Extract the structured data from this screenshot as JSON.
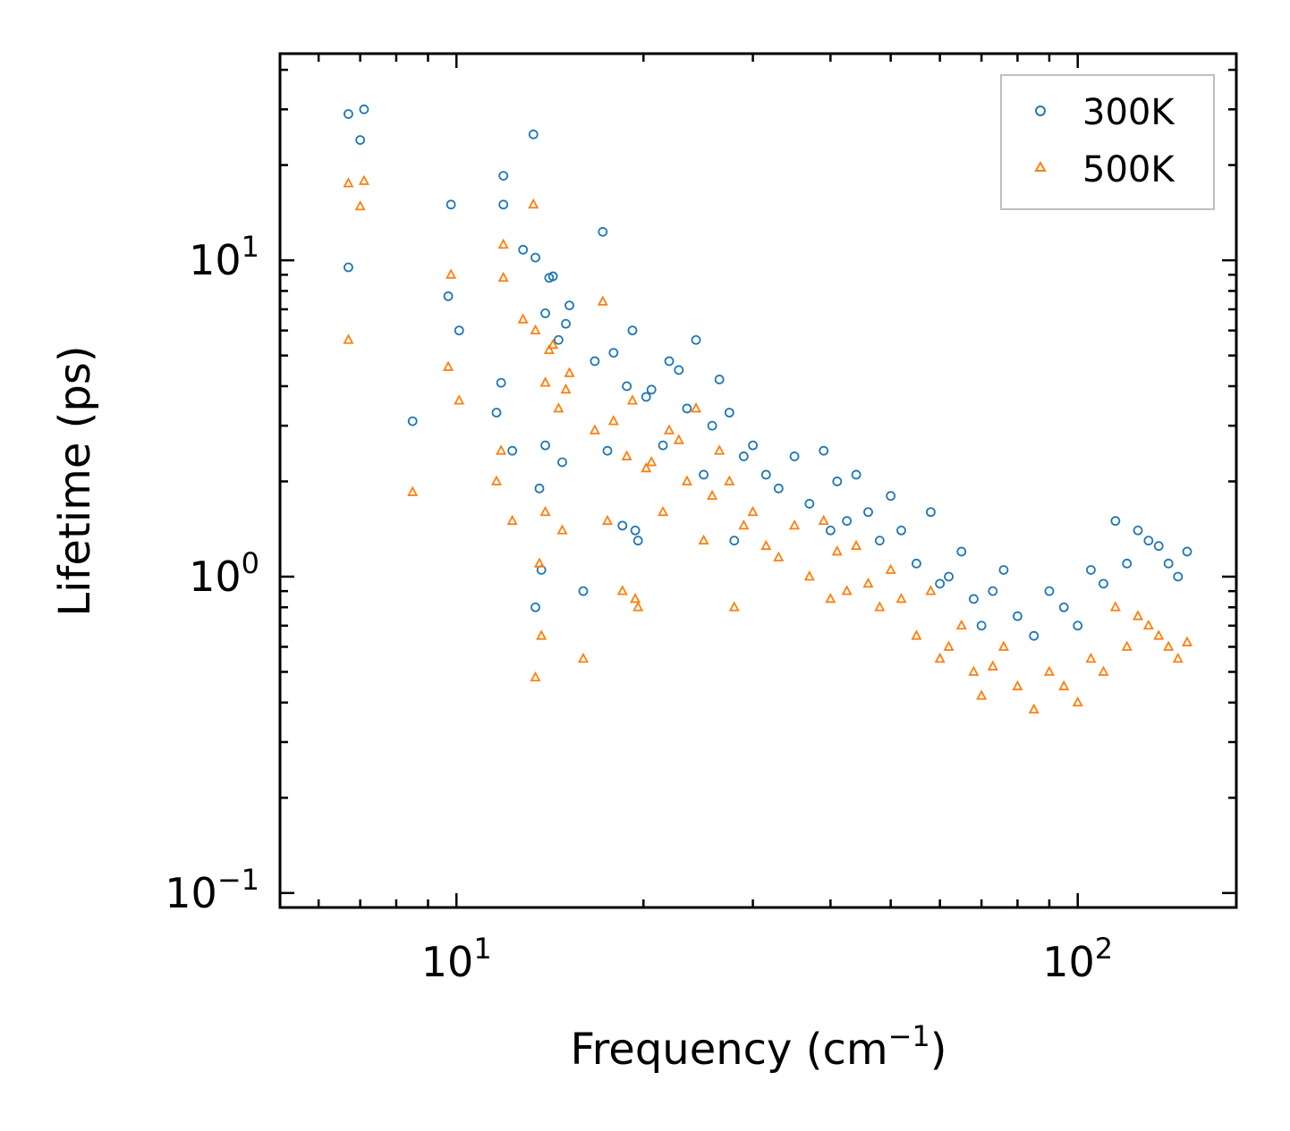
{
  "chart_data": {
    "type": "scatter",
    "title": "",
    "xlabel": "Frequency (cm",
    "xlabel_sup": "−1",
    "xlabel_end": ")",
    "ylabel": "Lifetime (ps)",
    "xscale": "log",
    "yscale": "log",
    "xlim": [
      5.2,
      180
    ],
    "ylim": [
      0.09,
      45
    ],
    "x_ticks": [
      {
        "value": 10,
        "base": "10",
        "exp": "1"
      },
      {
        "value": 100,
        "base": "10",
        "exp": "2"
      }
    ],
    "y_ticks": [
      {
        "value": 0.1,
        "base": "10",
        "exp": "−1"
      },
      {
        "value": 1,
        "base": "10",
        "exp": "0"
      },
      {
        "value": 10,
        "base": "10",
        "exp": "1"
      }
    ],
    "legend_position": "top-right",
    "series": [
      {
        "name": "300K",
        "marker": "circle",
        "color": "#1f77b4",
        "note": "representative sample; dense cloud approximated from visual",
        "x": [
          6.7,
          7.1,
          7.0,
          6.7,
          8.5,
          9.8,
          9.7,
          10.1,
          11.6,
          11.9,
          11.9,
          11.8,
          12.3,
          12.8,
          13.3,
          13.4,
          13.6,
          13.7,
          13.9,
          13.9,
          13.4,
          14.1,
          14.3,
          14.6,
          14.8,
          15.0,
          15.2,
          16.0,
          16.7,
          17.2,
          17.5,
          17.9,
          18.5,
          18.8,
          19.2,
          19.4,
          19.6,
          20.2,
          20.6,
          21.5,
          22.0,
          22.8,
          23.5,
          24.3,
          25.0,
          25.8,
          26.5,
          27.5,
          28.0,
          29.0,
          30.0,
          31.5,
          33.0,
          35.0,
          37.0,
          39.0,
          40.0,
          41.0,
          42.5,
          44.0,
          46.0,
          48.0,
          50.0,
          52.0,
          55.0,
          58.0,
          60.0,
          62.0,
          65.0,
          68.0,
          70.0,
          73.0,
          76.0,
          80.0,
          85.0,
          90.0,
          95.0,
          100.0,
          105.0,
          110.0,
          115.0,
          120.0,
          125.0,
          130.0,
          135.0,
          140.0,
          145.0,
          150.0
        ],
        "y": [
          29.0,
          30.0,
          24.0,
          9.5,
          3.1,
          15.0,
          7.7,
          6.0,
          3.3,
          18.5,
          15.0,
          4.1,
          2.5,
          10.8,
          25.0,
          10.2,
          1.9,
          1.05,
          2.6,
          6.8,
          0.8,
          8.8,
          8.9,
          5.6,
          2.3,
          6.3,
          7.2,
          0.9,
          4.8,
          12.3,
          2.5,
          5.1,
          1.45,
          4.0,
          6.0,
          1.4,
          1.3,
          3.7,
          3.9,
          2.6,
          4.8,
          4.5,
          3.4,
          5.6,
          2.1,
          3.0,
          4.2,
          3.3,
          1.3,
          2.4,
          2.6,
          2.1,
          1.9,
          2.4,
          1.7,
          2.5,
          1.4,
          2.0,
          1.5,
          2.1,
          1.6,
          1.3,
          1.8,
          1.4,
          1.1,
          1.6,
          0.95,
          1.0,
          1.2,
          0.85,
          0.7,
          0.9,
          1.05,
          0.75,
          0.65,
          0.9,
          0.8,
          0.7,
          1.05,
          0.95,
          1.5,
          1.1,
          1.4,
          1.3,
          1.25,
          1.1,
          1.0,
          1.2
        ]
      },
      {
        "name": "500K",
        "marker": "triangle",
        "color": "#ff7f0e",
        "note": "representative sample; dense cloud approximated from visual",
        "x": [
          6.7,
          7.1,
          7.0,
          6.7,
          8.5,
          9.8,
          9.7,
          10.1,
          11.6,
          11.9,
          11.9,
          11.8,
          12.3,
          12.8,
          13.3,
          13.4,
          13.6,
          13.7,
          13.9,
          13.9,
          13.4,
          14.1,
          14.3,
          14.6,
          14.8,
          15.0,
          15.2,
          16.0,
          16.7,
          17.2,
          17.5,
          17.9,
          18.5,
          18.8,
          19.2,
          19.4,
          19.6,
          20.2,
          20.6,
          21.5,
          22.0,
          22.8,
          23.5,
          24.3,
          25.0,
          25.8,
          26.5,
          27.5,
          28.0,
          29.0,
          30.0,
          31.5,
          33.0,
          35.0,
          37.0,
          39.0,
          40.0,
          41.0,
          42.5,
          44.0,
          46.0,
          48.0,
          50.0,
          52.0,
          55.0,
          58.0,
          60.0,
          62.0,
          65.0,
          68.0,
          70.0,
          73.0,
          76.0,
          80.0,
          85.0,
          90.0,
          95.0,
          100.0,
          105.0,
          110.0,
          115.0,
          120.0,
          125.0,
          130.0,
          135.0,
          140.0,
          145.0,
          150.0
        ],
        "y": [
          17.5,
          17.8,
          14.8,
          5.6,
          1.85,
          9.0,
          4.6,
          3.6,
          2.0,
          11.2,
          8.8,
          2.5,
          1.5,
          6.5,
          15.0,
          6.0,
          1.1,
          0.65,
          1.6,
          4.1,
          0.48,
          5.2,
          5.4,
          3.4,
          1.4,
          3.9,
          4.4,
          0.55,
          2.9,
          7.4,
          1.5,
          3.1,
          0.9,
          2.4,
          3.6,
          0.85,
          0.8,
          2.2,
          2.3,
          1.6,
          2.9,
          2.7,
          2.0,
          3.4,
          1.3,
          1.8,
          2.5,
          2.0,
          0.8,
          1.45,
          1.6,
          1.25,
          1.15,
          1.45,
          1.0,
          1.5,
          0.85,
          1.2,
          0.9,
          1.25,
          0.95,
          0.8,
          1.05,
          0.85,
          0.65,
          0.9,
          0.55,
          0.6,
          0.7,
          0.5,
          0.42,
          0.52,
          0.6,
          0.45,
          0.38,
          0.5,
          0.45,
          0.4,
          0.55,
          0.5,
          0.8,
          0.6,
          0.75,
          0.7,
          0.65,
          0.6,
          0.55,
          0.62
        ]
      }
    ]
  }
}
